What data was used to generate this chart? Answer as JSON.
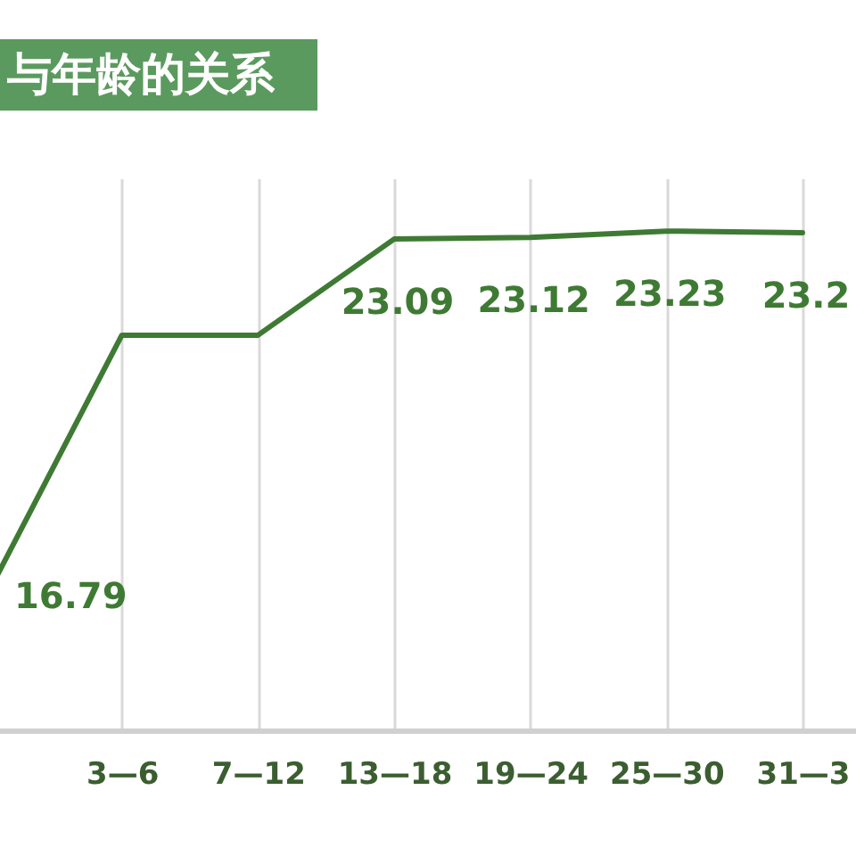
{
  "chart_data": {
    "type": "line",
    "title": "与年龄的关系",
    "categories": [
      null,
      "3—6",
      "7—12",
      "13—18",
      "19—24",
      "25—30",
      "31—3"
    ],
    "series": [
      {
        "color": "#3f7a34",
        "values": [
          16.79,
          21.4,
          21.4,
          23.09,
          23.12,
          23.23,
          23.2
        ],
        "value_labels": [
          "16.79",
          null,
          null,
          "23.09",
          "23.12",
          "23.23",
          "23.2"
        ]
      }
    ],
    "grid": "x"
  }
}
